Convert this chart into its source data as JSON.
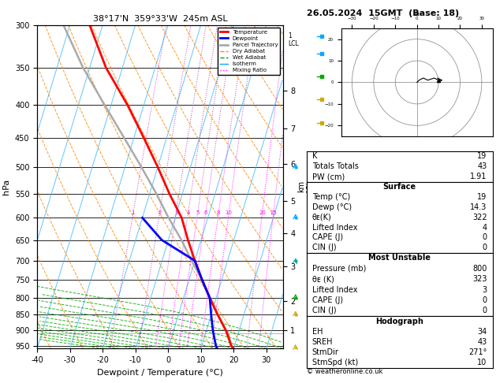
{
  "title_left": "38°17'N  359°33'W  245m ASL",
  "title_right": "26.05.2024  15GMT  (Base: 18)",
  "xlabel": "Dewpoint / Temperature (°C)",
  "ylabel_left": "hPa",
  "pressure_levels": [
    300,
    350,
    400,
    450,
    500,
    550,
    600,
    650,
    700,
    750,
    800,
    850,
    900,
    950
  ],
  "xlim": [
    -40,
    35
  ],
  "p_min": 300,
  "p_max": 960,
  "km_ticks": [
    1,
    2,
    3,
    4,
    5,
    6,
    7,
    8
  ],
  "km_pressures": [
    900,
    810,
    715,
    635,
    565,
    495,
    435,
    380
  ],
  "lcl_pressure": 910,
  "skew_amount": 30,
  "temp_profile": {
    "pressure": [
      960,
      950,
      900,
      850,
      800,
      750,
      700,
      650,
      600,
      550,
      500,
      450,
      400,
      350,
      300
    ],
    "temp": [
      20,
      19,
      16,
      12,
      8,
      4,
      0,
      -4,
      -8,
      -14,
      -20,
      -27,
      -35,
      -45,
      -54
    ]
  },
  "dewp_profile": {
    "pressure": [
      960,
      950,
      900,
      850,
      800,
      750,
      700,
      650,
      600
    ],
    "temp": [
      15,
      14.3,
      12,
      10,
      8,
      4,
      0,
      -12,
      -20
    ]
  },
  "parcel_profile": {
    "pressure": [
      960,
      950,
      910,
      900,
      850,
      800,
      750,
      700,
      650,
      600,
      550,
      500,
      450,
      400,
      350,
      300
    ],
    "temp": [
      20,
      19,
      17,
      16,
      12,
      8,
      4,
      -1,
      -6,
      -12,
      -18,
      -25,
      -33,
      -42,
      -52,
      -62
    ]
  },
  "wind_barbs": [
    {
      "pressure": 960,
      "u": 0,
      "v": -5,
      "color": "#ccaa00"
    },
    {
      "pressure": 850,
      "u": 2,
      "v": -5,
      "color": "#ccaa00"
    },
    {
      "pressure": 800,
      "u": 2,
      "v": -5,
      "color": "#00aa00"
    },
    {
      "pressure": 700,
      "u": 5,
      "v": -5,
      "color": "#00aaaa"
    },
    {
      "pressure": 600,
      "u": 3,
      "v": -8,
      "color": "#00aaff"
    },
    {
      "pressure": 500,
      "u": 5,
      "v": -12,
      "color": "#00aaff"
    }
  ],
  "colors": {
    "temp": "#ff0000",
    "dewp": "#0000ff",
    "parcel": "#aaaaaa",
    "dry_adiabat": "#ff8800",
    "wet_adiabat": "#00aa00",
    "isotherm": "#00aaff",
    "mixing_ratio": "#ff00ff",
    "background": "#ffffff",
    "grid": "#000000"
  },
  "legend_items": [
    {
      "label": "Temperature",
      "color": "#ff0000",
      "lw": 2,
      "ls": "-"
    },
    {
      "label": "Dewpoint",
      "color": "#0000ff",
      "lw": 2,
      "ls": "-"
    },
    {
      "label": "Parcel Trajectory",
      "color": "#aaaaaa",
      "lw": 2,
      "ls": "-"
    },
    {
      "label": "Dry Adiabat",
      "color": "#ff8800",
      "lw": 1,
      "ls": "--"
    },
    {
      "label": "Wet Adiabat",
      "color": "#00aa00",
      "lw": 1,
      "ls": "--"
    },
    {
      "label": "Isotherm",
      "color": "#00aaff",
      "lw": 1,
      "ls": "-"
    },
    {
      "label": "Mixing Ratio",
      "color": "#ff00ff",
      "lw": 1,
      "ls": ":"
    }
  ],
  "copyright": "© weatheronline.co.uk"
}
